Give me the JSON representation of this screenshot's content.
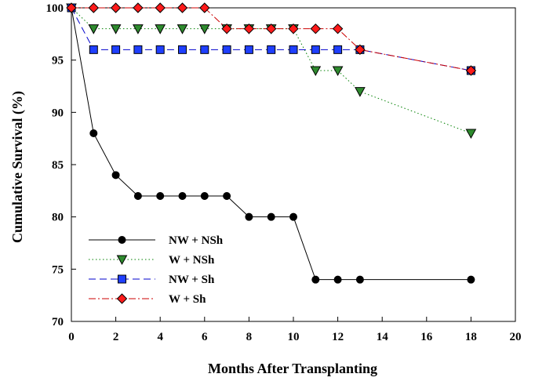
{
  "chart_data": {
    "type": "line",
    "xlabel": "Months After Transplanting",
    "ylabel": "Cumulative Survival (%)",
    "xlim": [
      0,
      20
    ],
    "ylim": [
      70,
      100
    ],
    "xticks": [
      0,
      2,
      4,
      6,
      8,
      10,
      12,
      14,
      16,
      18,
      20
    ],
    "yticks": [
      70,
      75,
      80,
      85,
      90,
      95,
      100
    ],
    "grid": false,
    "legend_position": "bottom-left",
    "series": [
      {
        "name": "NW + NSh",
        "marker": "circle",
        "line": "solid",
        "color": "#000000",
        "marker_fill": "#000000",
        "x": [
          0,
          1,
          2,
          3,
          4,
          5,
          6,
          7,
          8,
          9,
          10,
          11,
          12,
          13,
          18
        ],
        "y": [
          100,
          88,
          84,
          82,
          82,
          82,
          82,
          82,
          80,
          80,
          80,
          74,
          74,
          74,
          74
        ]
      },
      {
        "name": "W + NSh",
        "marker": "triangle-down",
        "line": "dotted",
        "color": "#008000",
        "marker_fill": "#2e8b2e",
        "x": [
          0,
          1,
          2,
          3,
          4,
          5,
          6,
          7,
          8,
          9,
          10,
          11,
          12,
          13,
          18
        ],
        "y": [
          100,
          98,
          98,
          98,
          98,
          98,
          98,
          98,
          98,
          98,
          98,
          94,
          94,
          92,
          88
        ]
      },
      {
        "name": "NW + Sh",
        "marker": "square",
        "line": "dashed",
        "color": "#0000cc",
        "marker_fill": "#1f3fff",
        "x": [
          0,
          1,
          2,
          3,
          4,
          5,
          6,
          7,
          8,
          9,
          10,
          11,
          12,
          13,
          18
        ],
        "y": [
          100,
          96,
          96,
          96,
          96,
          96,
          96,
          96,
          96,
          96,
          96,
          96,
          96,
          96,
          94
        ]
      },
      {
        "name": "W + Sh",
        "marker": "diamond",
        "line": "dash-dot",
        "color": "#cc0000",
        "marker_fill": "#ff1a1a",
        "x": [
          0,
          1,
          2,
          3,
          4,
          5,
          6,
          7,
          8,
          9,
          10,
          11,
          12,
          13,
          18
        ],
        "y": [
          100,
          100,
          100,
          100,
          100,
          100,
          100,
          98,
          98,
          98,
          98,
          98,
          98,
          96,
          94
        ]
      }
    ]
  }
}
